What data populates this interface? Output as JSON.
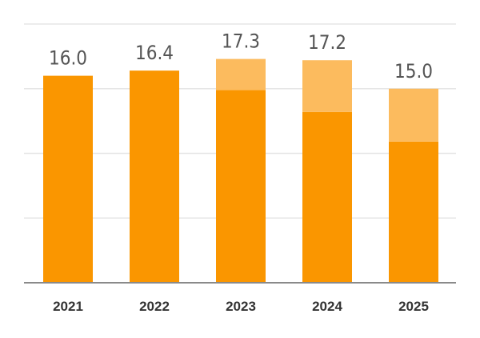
{
  "chart_data": {
    "type": "bar",
    "stacked": true,
    "categories": [
      "2021",
      "2022",
      "2023",
      "2024",
      "2025"
    ],
    "series": [
      {
        "values": [
          16.0,
          16.4,
          14.9,
          13.2,
          10.9
        ],
        "color": "#fa9600"
      },
      {
        "values": [
          0,
          0,
          2.4,
          4.0,
          4.1
        ],
        "color": "#fcbb5e"
      }
    ],
    "totals": [
      "16.0",
      "16.4",
      "17.3",
      "17.2",
      "15.0"
    ],
    "ylim": [
      0,
      20
    ],
    "grid": true,
    "title": "",
    "xlabel": "",
    "ylabel": ""
  }
}
